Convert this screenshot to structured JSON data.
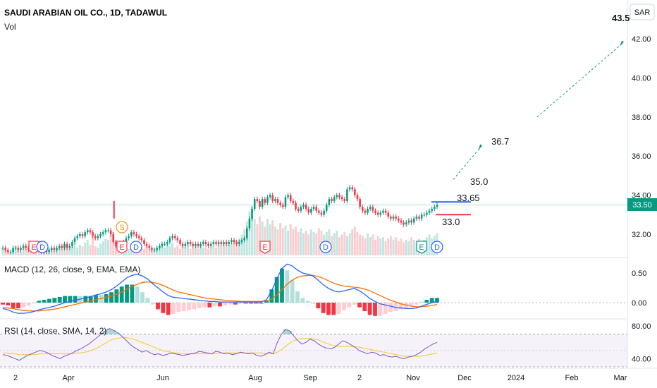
{
  "header": {
    "symbol_title": "SAUDI ARABIAN OIL CO., 1D, TADAWUL",
    "volume_label": "Vol",
    "currency": "SAR",
    "top_cut_label": "43.5",
    "last_price": "33.50"
  },
  "chart_data": {
    "type": "candlestick",
    "price_axis_ticks": [
      "42.00",
      "40.00",
      "38.00",
      "36.00",
      "34.00",
      "32.00"
    ],
    "price_axis_values": [
      42,
      40,
      38,
      36,
      34,
      32
    ],
    "ylim": [
      30.9,
      43.8
    ],
    "time_axis_ticks": [
      "2",
      "Apr",
      "Jun",
      "Aug",
      "Sep",
      "2",
      "Nov",
      "Dec",
      "2024",
      "Feb",
      "Mar"
    ],
    "close": [
      31.3,
      31.2,
      31.1,
      31.1,
      31.3,
      31.3,
      31.2,
      31.3,
      31.4,
      31.3,
      31.2,
      31.3,
      31.2,
      31.3,
      31.2,
      31.1,
      31.2,
      31.1,
      31.2,
      31.3,
      31.2,
      31.3,
      31.4,
      31.3,
      31.5,
      31.3,
      31.4,
      31.6,
      31.8,
      31.9,
      32.0,
      31.9,
      32.1,
      32.2,
      32.1,
      31.9,
      31.8,
      31.9,
      32.0,
      32.1,
      32.2,
      32.2,
      32.0,
      31.6,
      31.4,
      31.3,
      31.5,
      31.6,
      31.8,
      31.9,
      32.1,
      32.0,
      31.9,
      31.8,
      31.7,
      31.5,
      31.4,
      31.3,
      31.2,
      31.2,
      31.3,
      31.4,
      31.5,
      31.5,
      31.6,
      31.8,
      31.9,
      31.8,
      31.7,
      31.5,
      31.4,
      31.5,
      31.6,
      31.5,
      31.4,
      31.5,
      31.4,
      31.5,
      31.6,
      31.5,
      31.4,
      31.5,
      31.6,
      31.5,
      31.6,
      31.5,
      31.6,
      31.5,
      31.6,
      31.7,
      31.6,
      31.5,
      31.6,
      31.7,
      31.8,
      32.3,
      32.8,
      33.3,
      33.8,
      33.7,
      33.4,
      33.8,
      33.6,
      33.9,
      34.0,
      33.7,
      33.8,
      33.6,
      33.5,
      33.4,
      33.9,
      34.0,
      33.7,
      33.6,
      33.3,
      33.2,
      33.4,
      33.5,
      33.3,
      33.1,
      33.3,
      33.4,
      33.2,
      33.1,
      33.0,
      33.2,
      33.5,
      33.8,
      33.7,
      33.9,
      34.0,
      33.9,
      33.8,
      33.7,
      34.3,
      34.4,
      34.3,
      34.0,
      33.8,
      33.4,
      33.2,
      33.1,
      33.3,
      33.4,
      33.2,
      33.1,
      33.0,
      33.1,
      33.2,
      33.1,
      32.9,
      32.8,
      32.9,
      32.8,
      32.7,
      32.6,
      32.5,
      32.6,
      32.7,
      32.6,
      32.8,
      32.9,
      32.8,
      33.0,
      33.0,
      33.1,
      33.2,
      33.3,
      33.4,
      33.5
    ],
    "volume": [
      5,
      6,
      4,
      3,
      5,
      7,
      4,
      3,
      6,
      5,
      4,
      3,
      5,
      4,
      6,
      5,
      3,
      4,
      5,
      6,
      4,
      5,
      7,
      5,
      6,
      8,
      5,
      7,
      9,
      6,
      8,
      7,
      10,
      12,
      8,
      14,
      7,
      6,
      9,
      11,
      13,
      12,
      16,
      18,
      12,
      9,
      8,
      7,
      6,
      5,
      6,
      8,
      7,
      9,
      6,
      5,
      7,
      5,
      4,
      6,
      5,
      7,
      8,
      6,
      9,
      7,
      10,
      6,
      8,
      5,
      7,
      6,
      9,
      5,
      6,
      7,
      5,
      8,
      6,
      7,
      5,
      6,
      7,
      6,
      8,
      7,
      9,
      10,
      8,
      9,
      12,
      11,
      13,
      16,
      20,
      26,
      34,
      38,
      28,
      24,
      30,
      26,
      22,
      28,
      24,
      27,
      22,
      20,
      25,
      21,
      23,
      19,
      24,
      20,
      22,
      18,
      21,
      17,
      19,
      16,
      20,
      18,
      17,
      21,
      19,
      16,
      18,
      20,
      15,
      17,
      19,
      14,
      16,
      18,
      15,
      17,
      20,
      22,
      18,
      16,
      15,
      13,
      17,
      14,
      16,
      12,
      15,
      13,
      14,
      11,
      13,
      15,
      12,
      14,
      11,
      13,
      10,
      12,
      11,
      14,
      12,
      10,
      13,
      11,
      12,
      14,
      16,
      13,
      15,
      17
    ],
    "macd_line": [
      -0.1,
      -0.12,
      -0.16,
      -0.18,
      -0.18,
      -0.17,
      -0.15,
      -0.12,
      -0.1,
      -0.08,
      -0.06,
      -0.03,
      0.0,
      0.02,
      0.04,
      0.06,
      0.08,
      0.1,
      0.13,
      0.15,
      0.18,
      0.22,
      0.28,
      0.35,
      0.42,
      0.46,
      0.48,
      0.45,
      0.4,
      0.32,
      0.25,
      0.18,
      0.12,
      0.09,
      0.08,
      0.07,
      0.06,
      0.05,
      0.04,
      0.03,
      0.02,
      0.02,
      0.01,
      0.01,
      0.01,
      0.01,
      0.01,
      0.01,
      0.01,
      0.01,
      0.01,
      0.05,
      0.2,
      0.4,
      0.58,
      0.65,
      0.62,
      0.55,
      0.5,
      0.48,
      0.45,
      0.38,
      0.3,
      0.24,
      0.2,
      0.18,
      0.2,
      0.22,
      0.24,
      0.2,
      0.14,
      0.07,
      0.02,
      -0.02,
      -0.04,
      -0.06,
      -0.08,
      -0.09,
      -0.1,
      -0.1,
      -0.09,
      -0.06,
      -0.03,
      0.0,
      0.02
    ],
    "macd_signal": [
      -0.08,
      -0.09,
      -0.1,
      -0.12,
      -0.13,
      -0.14,
      -0.14,
      -0.14,
      -0.13,
      -0.12,
      -0.11,
      -0.09,
      -0.07,
      -0.05,
      -0.03,
      -0.01,
      0.01,
      0.03,
      0.05,
      0.07,
      0.09,
      0.11,
      0.14,
      0.18,
      0.23,
      0.27,
      0.31,
      0.34,
      0.35,
      0.34,
      0.32,
      0.29,
      0.25,
      0.21,
      0.18,
      0.16,
      0.14,
      0.12,
      0.1,
      0.08,
      0.07,
      0.06,
      0.05,
      0.04,
      0.03,
      0.03,
      0.02,
      0.02,
      0.02,
      0.02,
      0.02,
      0.03,
      0.06,
      0.13,
      0.22,
      0.31,
      0.38,
      0.43,
      0.45,
      0.46,
      0.46,
      0.44,
      0.41,
      0.37,
      0.33,
      0.3,
      0.28,
      0.27,
      0.26,
      0.25,
      0.23,
      0.2,
      0.16,
      0.12,
      0.08,
      0.04,
      0.01,
      -0.02,
      -0.04,
      -0.06,
      -0.07,
      -0.07,
      -0.06,
      -0.05,
      -0.03
    ],
    "macd_ylim": [
      -0.25,
      0.75
    ],
    "macd_ticks": [
      "0.50",
      "0.00"
    ],
    "macd_tick_values": [
      0.5,
      0.0
    ],
    "rsi": [
      45,
      44,
      42,
      40,
      38,
      41,
      44,
      46,
      48,
      50,
      49,
      47,
      44,
      42,
      40,
      43,
      45,
      47,
      50,
      52,
      55,
      58,
      62,
      66,
      70,
      74,
      77,
      75,
      72,
      68,
      63,
      58,
      54,
      51,
      48,
      50,
      47,
      45,
      46,
      44,
      45,
      47,
      46,
      45,
      44,
      45,
      46,
      47,
      49,
      48,
      47,
      46,
      49,
      48,
      46,
      47,
      45,
      46,
      48,
      47,
      46,
      47,
      44,
      43,
      45,
      48,
      46,
      60,
      70,
      76,
      74,
      68,
      62,
      58,
      60,
      64,
      62,
      58,
      55,
      53,
      52,
      54,
      58,
      62,
      60,
      57,
      54,
      50,
      48,
      46,
      48,
      47,
      44,
      45,
      43,
      42,
      43,
      41,
      40,
      42,
      43,
      45,
      48,
      52,
      55,
      58,
      60
    ],
    "rsi_sma": [
      47,
      47,
      46,
      46,
      45,
      45,
      45,
      45,
      45,
      46,
      46,
      46,
      46,
      46,
      46,
      46,
      46,
      46,
      47,
      47,
      48,
      49,
      51,
      53,
      56,
      59,
      62,
      64,
      65,
      66,
      66,
      65,
      64,
      62,
      60,
      58,
      56,
      54,
      52,
      50,
      49,
      48,
      47,
      47,
      46,
      46,
      46,
      46,
      46,
      46,
      46,
      46,
      46,
      47,
      47,
      47,
      47,
      47,
      47,
      47,
      47,
      47,
      47,
      47,
      46,
      46,
      46,
      48,
      51,
      55,
      59,
      62,
      64,
      65,
      65,
      65,
      64,
      63,
      61,
      59,
      57,
      56,
      55,
      55,
      55,
      55,
      55,
      54,
      53,
      52,
      51,
      50,
      49,
      48,
      47,
      46,
      45,
      44,
      43,
      43,
      43,
      43,
      43,
      44,
      45,
      46,
      47
    ],
    "rsi_ylim": [
      30,
      88
    ],
    "rsi_ticks": [
      "80.00",
      "40.00"
    ],
    "rsi_tick_values": [
      80,
      40
    ],
    "levels": [
      {
        "label": "36.7",
        "value": 36.7
      },
      {
        "label": "35.0",
        "value": 35.0
      },
      {
        "label": "33.65",
        "value": 33.65
      },
      {
        "label": "33.0",
        "value": 33.0
      }
    ],
    "event_markers": [
      {
        "label": "E",
        "kind": "earnings",
        "color": "#f23645"
      },
      {
        "label": "D",
        "kind": "dividend",
        "color": "#2962ff"
      },
      {
        "label": "S",
        "kind": "split",
        "color": "#f7931a"
      },
      {
        "label": "E",
        "kind": "earnings",
        "color": "#f23645"
      },
      {
        "label": "D",
        "kind": "dividend",
        "color": "#2962ff"
      },
      {
        "label": "E",
        "kind": "earnings",
        "color": "#f23645"
      },
      {
        "label": "D",
        "kind": "dividend",
        "color": "#2962ff"
      },
      {
        "label": "E",
        "kind": "earnings",
        "color": "#089981"
      },
      {
        "label": "D",
        "kind": "dividend",
        "color": "#2962ff"
      }
    ],
    "colors": {
      "up": "#089981",
      "down": "#f23645",
      "macd": "#2962ff",
      "signal": "#ff6d00",
      "rsi": "#7e57c2",
      "rsi_sma": "#f5d142",
      "level_blue": "#2962ff",
      "level_red": "#f23645",
      "projection": "#089981",
      "last_price_bg": "#089981"
    }
  },
  "indicators": {
    "macd_title": "MACD (12, 26, close, 9, EMA, EMA)",
    "rsi_title": "RSI (14, close, SMA, 14, 2)"
  }
}
